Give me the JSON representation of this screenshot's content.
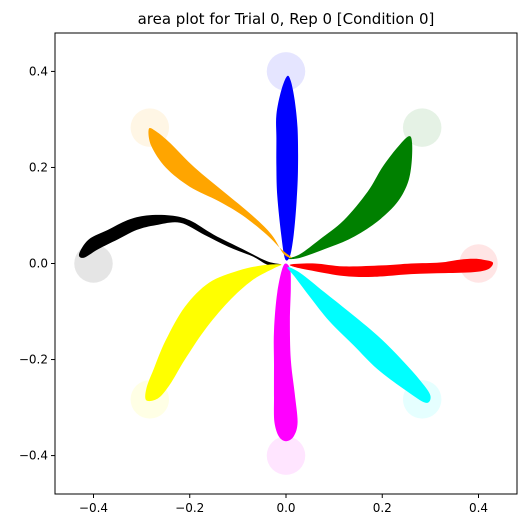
{
  "chart_data": {
    "type": "area",
    "title": "area plot for Trial 0, Rep 0 [Condition 0]",
    "xlabel": "",
    "ylabel": "",
    "xlim": [
      -0.48,
      0.48
    ],
    "ylim": [
      -0.48,
      0.48
    ],
    "grid": false,
    "x_ticks": [
      "−0.4",
      "−0.2",
      "0.0",
      "0.2",
      "0.4"
    ],
    "x_tick_values": [
      -0.4,
      -0.2,
      0.0,
      0.2,
      0.4
    ],
    "y_ticks": [
      "−0.4",
      "−0.2",
      "0.0",
      "0.2",
      "0.4"
    ],
    "y_tick_values": [
      -0.4,
      -0.2,
      0.0,
      0.2,
      0.4
    ],
    "targets": [
      {
        "x": 0.4,
        "y": 0.0,
        "radius": 0.04,
        "color": "#ff0000"
      },
      {
        "x": 0.283,
        "y": 0.283,
        "radius": 0.04,
        "color": "#008000"
      },
      {
        "x": 0.0,
        "y": 0.4,
        "radius": 0.04,
        "color": "#0000ff"
      },
      {
        "x": -0.283,
        "y": 0.283,
        "radius": 0.04,
        "color": "#ffa500"
      },
      {
        "x": -0.4,
        "y": 0.0,
        "radius": 0.04,
        "color": "#000000"
      },
      {
        "x": -0.283,
        "y": -0.283,
        "radius": 0.04,
        "color": "#ffff00"
      },
      {
        "x": 0.0,
        "y": -0.4,
        "radius": 0.04,
        "color": "#ff00ff"
      },
      {
        "x": 0.283,
        "y": -0.283,
        "radius": 0.04,
        "color": "#00ffff"
      }
    ],
    "series": [
      {
        "color": "#ff0000",
        "outline": [
          [
            0.01,
            -0.002
          ],
          [
            0.06,
            0.0
          ],
          [
            0.12,
            -0.006
          ],
          [
            0.2,
            -0.004
          ],
          [
            0.26,
            0.0
          ],
          [
            0.32,
            0.002
          ],
          [
            0.36,
            0.008
          ],
          [
            0.39,
            0.01
          ],
          [
            0.41,
            0.008
          ],
          [
            0.43,
            0.002
          ],
          [
            0.42,
            -0.012
          ],
          [
            0.39,
            -0.018
          ],
          [
            0.33,
            -0.02
          ],
          [
            0.26,
            -0.022
          ],
          [
            0.18,
            -0.028
          ],
          [
            0.12,
            -0.026
          ],
          [
            0.06,
            -0.016
          ],
          [
            0.02,
            -0.008
          ]
        ]
      },
      {
        "color": "#008000",
        "outline": [
          [
            0.005,
            0.01
          ],
          [
            0.03,
            0.02
          ],
          [
            0.07,
            0.05
          ],
          [
            0.12,
            0.09
          ],
          [
            0.17,
            0.15
          ],
          [
            0.2,
            0.2
          ],
          [
            0.23,
            0.24
          ],
          [
            0.255,
            0.265
          ],
          [
            0.262,
            0.25
          ],
          [
            0.26,
            0.2
          ],
          [
            0.25,
            0.16
          ],
          [
            0.225,
            0.12
          ],
          [
            0.18,
            0.08
          ],
          [
            0.13,
            0.05
          ],
          [
            0.08,
            0.03
          ],
          [
            0.03,
            0.012
          ]
        ]
      },
      {
        "color": "#0000ff",
        "outline": [
          [
            -0.002,
            0.01
          ],
          [
            -0.01,
            0.06
          ],
          [
            -0.018,
            0.14
          ],
          [
            -0.02,
            0.2
          ],
          [
            -0.02,
            0.26
          ],
          [
            -0.02,
            0.31
          ],
          [
            -0.01,
            0.36
          ],
          [
            0.002,
            0.39
          ],
          [
            0.01,
            0.38
          ],
          [
            0.018,
            0.34
          ],
          [
            0.024,
            0.28
          ],
          [
            0.025,
            0.2
          ],
          [
            0.022,
            0.13
          ],
          [
            0.016,
            0.06
          ],
          [
            0.008,
            0.015
          ]
        ]
      },
      {
        "color": "#ffa500",
        "outline": [
          [
            0.012,
            0.012
          ],
          [
            -0.01,
            0.03
          ],
          [
            -0.04,
            0.06
          ],
          [
            -0.09,
            0.1
          ],
          [
            -0.14,
            0.13
          ],
          [
            -0.2,
            0.16
          ],
          [
            -0.25,
            0.2
          ],
          [
            -0.28,
            0.245
          ],
          [
            -0.285,
            0.28
          ],
          [
            -0.27,
            0.275
          ],
          [
            -0.24,
            0.25
          ],
          [
            -0.19,
            0.2
          ],
          [
            -0.13,
            0.15
          ],
          [
            -0.07,
            0.1
          ],
          [
            -0.03,
            0.06
          ],
          [
            -0.005,
            0.02
          ]
        ]
      },
      {
        "color": "#000000",
        "outline": [
          [
            -0.01,
            -0.002
          ],
          [
            -0.04,
            0.005
          ],
          [
            -0.09,
            0.03
          ],
          [
            -0.15,
            0.06
          ],
          [
            -0.2,
            0.09
          ],
          [
            -0.24,
            0.1
          ],
          [
            -0.29,
            0.1
          ],
          [
            -0.33,
            0.09
          ],
          [
            -0.37,
            0.07
          ],
          [
            -0.41,
            0.05
          ],
          [
            -0.43,
            0.02
          ],
          [
            -0.42,
            0.012
          ],
          [
            -0.39,
            0.03
          ],
          [
            -0.35,
            0.05
          ],
          [
            -0.31,
            0.07
          ],
          [
            -0.27,
            0.08
          ],
          [
            -0.22,
            0.085
          ],
          [
            -0.17,
            0.06
          ],
          [
            -0.12,
            0.035
          ],
          [
            -0.07,
            0.015
          ],
          [
            -0.035,
            -0.004
          ]
        ]
      },
      {
        "color": "#ffff00",
        "outline": [
          [
            -0.01,
            -0.002
          ],
          [
            -0.05,
            -0.004
          ],
          [
            -0.1,
            -0.015
          ],
          [
            -0.16,
            -0.04
          ],
          [
            -0.21,
            -0.09
          ],
          [
            -0.25,
            -0.16
          ],
          [
            -0.275,
            -0.22
          ],
          [
            -0.29,
            -0.26
          ],
          [
            -0.29,
            -0.285
          ],
          [
            -0.265,
            -0.28
          ],
          [
            -0.24,
            -0.25
          ],
          [
            -0.21,
            -0.2
          ],
          [
            -0.17,
            -0.14
          ],
          [
            -0.12,
            -0.08
          ],
          [
            -0.07,
            -0.035
          ],
          [
            -0.025,
            -0.01
          ]
        ]
      },
      {
        "color": "#ff00ff",
        "outline": [
          [
            -0.005,
            -0.004
          ],
          [
            -0.018,
            -0.06
          ],
          [
            -0.025,
            -0.14
          ],
          [
            -0.025,
            -0.21
          ],
          [
            -0.025,
            -0.28
          ],
          [
            -0.024,
            -0.33
          ],
          [
            -0.015,
            -0.36
          ],
          [
            0.0,
            -0.37
          ],
          [
            0.016,
            -0.36
          ],
          [
            0.024,
            -0.33
          ],
          [
            0.018,
            -0.27
          ],
          [
            0.01,
            -0.2
          ],
          [
            0.008,
            -0.12
          ],
          [
            0.01,
            -0.05
          ],
          [
            0.008,
            -0.01
          ]
        ]
      },
      {
        "color": "#00ffff",
        "outline": [
          [
            0.003,
            -0.008
          ],
          [
            0.02,
            -0.03
          ],
          [
            0.05,
            -0.07
          ],
          [
            0.09,
            -0.12
          ],
          [
            0.14,
            -0.17
          ],
          [
            0.19,
            -0.22
          ],
          [
            0.25,
            -0.265
          ],
          [
            0.29,
            -0.29
          ],
          [
            0.3,
            -0.275
          ],
          [
            0.28,
            -0.245
          ],
          [
            0.24,
            -0.2
          ],
          [
            0.19,
            -0.15
          ],
          [
            0.13,
            -0.1
          ],
          [
            0.08,
            -0.06
          ],
          [
            0.03,
            -0.02
          ]
        ]
      }
    ]
  }
}
